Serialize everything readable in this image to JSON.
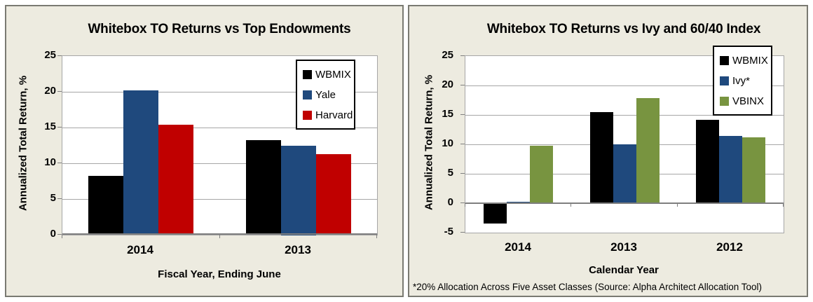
{
  "colors": {
    "panel_background": "#EDEBE0",
    "plot_background": "#FFFFFF",
    "gridline": "#A6A6A6",
    "axis_line": "#7F7F7F",
    "panel_border": "#7A7A72",
    "legend_border": "#000000",
    "text": "#000000",
    "wbmix_black": "#000000",
    "endowment_blue": "#1F497D",
    "harvard_red": "#C00000",
    "vbinx_green": "#789440"
  },
  "chart_data": [
    {
      "type": "bar",
      "title": "Whitebox TO Returns vs Top Endowments",
      "xlabel": "Fiscal Year, Ending June",
      "ylabel": "Annualized Total Return, %",
      "ylim": [
        0,
        25
      ],
      "ystep": 5,
      "grid": true,
      "legend_position": "top-right-inside",
      "categories": [
        "2014",
        "2013"
      ],
      "series": [
        {
          "name": "WBMIX",
          "color": "#000000",
          "values": [
            8.2,
            13.2
          ]
        },
        {
          "name": "Yale",
          "color": "#1F497D",
          "values": [
            20.2,
            12.5
          ]
        },
        {
          "name": "Harvard",
          "color": "#C00000",
          "values": [
            15.4,
            11.3
          ]
        }
      ]
    },
    {
      "type": "bar",
      "title": "Whitebox TO Returns vs Ivy and 60/40 Index",
      "xlabel": "Calendar Year",
      "ylabel": "Annualized Total Return, %",
      "ylim": [
        -5,
        25
      ],
      "ystep": 5,
      "grid": true,
      "legend_position": "top-right-inside",
      "categories": [
        "2014",
        "2013",
        "2012"
      ],
      "series": [
        {
          "name": "WBMIX",
          "color": "#000000",
          "values": [
            -3.4,
            15.5,
            14.2
          ]
        },
        {
          "name": "Ivy*",
          "color": "#1F497D",
          "values": [
            0.2,
            10.0,
            11.4
          ]
        },
        {
          "name": "VBINX",
          "color": "#789440",
          "values": [
            9.8,
            17.9,
            11.2
          ]
        }
      ],
      "footnote": "*20% Allocation Across Five Asset Classes (Source: Alpha Architect Allocation Tool)"
    }
  ]
}
